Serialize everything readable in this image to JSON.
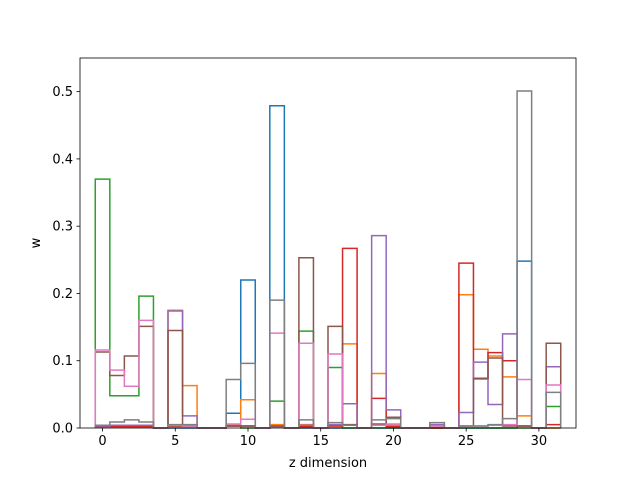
{
  "chart_data": {
    "type": "step",
    "xlabel": "z dimension",
    "ylabel": "w",
    "xlim": [
      -1.55,
      32.55
    ],
    "ylim": [
      0,
      0.55
    ],
    "xticks": [
      0,
      5,
      10,
      15,
      20,
      25,
      30
    ],
    "yticks": [
      0.0,
      0.1,
      0.2,
      0.3,
      0.4,
      0.5
    ],
    "xtick_labels": [
      "0",
      "5",
      "10",
      "15",
      "20",
      "25",
      "30"
    ],
    "ytick_labels": [
      "0.0",
      "0.1",
      "0.2",
      "0.3",
      "0.4",
      "0.5"
    ],
    "grid": false,
    "legend": "none",
    "series": [
      {
        "color": "#1f77b4",
        "values": [
          0.003,
          0.003,
          0.002,
          0.002,
          0,
          0,
          0,
          0,
          0,
          0.022,
          0.22,
          0,
          0.479,
          0,
          0,
          0,
          0,
          0,
          0,
          0,
          0,
          0,
          0,
          0,
          0,
          0,
          0,
          0,
          0,
          0.248,
          0,
          0
        ]
      },
      {
        "color": "#ff7f0e",
        "values": [
          0.002,
          0.002,
          0.002,
          0.002,
          0,
          0.175,
          0.063,
          0,
          0,
          0.004,
          0.042,
          0,
          0.005,
          0,
          0.005,
          0,
          0.003,
          0.125,
          0,
          0.081,
          0.004,
          0,
          0,
          0,
          0,
          0.198,
          0.117,
          0.107,
          0.076,
          0.018,
          0,
          0
        ]
      },
      {
        "color": "#2ca02c",
        "values": [
          0.37,
          0.048,
          0.048,
          0.196,
          0,
          0.003,
          0.003,
          0,
          0,
          0.003,
          0,
          0,
          0.04,
          0,
          0.144,
          0,
          0.09,
          0,
          0,
          0,
          0,
          0,
          0,
          0,
          0,
          0,
          0,
          0,
          0,
          0,
          0,
          0.032
        ]
      },
      {
        "color": "#d62728",
        "values": [
          0.002,
          0.002,
          0.002,
          0.002,
          0,
          0.003,
          0.003,
          0,
          0,
          0.003,
          0.003,
          0,
          0.002,
          0,
          0.002,
          0,
          0.003,
          0.267,
          0,
          0.044,
          0.002,
          0,
          0,
          0,
          0,
          0.245,
          0.073,
          0.112,
          0.1,
          0.003,
          0,
          0.005
        ]
      },
      {
        "color": "#9467bd",
        "values": [
          0.003,
          0.004,
          0.004,
          0.004,
          0,
          0.174,
          0.018,
          0,
          0,
          0.003,
          0.003,
          0,
          0.003,
          0,
          0.004,
          0,
          0.005,
          0.036,
          0,
          0.286,
          0.027,
          0,
          0,
          0.005,
          0,
          0.023,
          0.098,
          0.035,
          0.14,
          0.003,
          0,
          0.091
        ]
      },
      {
        "color": "#8c564b",
        "values": [
          0.113,
          0.078,
          0.107,
          0.151,
          0,
          0.145,
          0.004,
          0,
          0,
          0.003,
          0.003,
          0,
          0.003,
          0,
          0.253,
          0,
          0.151,
          0.005,
          0,
          0.006,
          0.016,
          0,
          0,
          0.003,
          0,
          0.003,
          0.074,
          0.104,
          0.003,
          0.003,
          0,
          0.126
        ]
      },
      {
        "color": "#e377c2",
        "values": [
          0.116,
          0.086,
          0.062,
          0.16,
          0,
          0.004,
          0.003,
          0,
          0,
          0.006,
          0.013,
          0,
          0.141,
          0,
          0.126,
          0,
          0.11,
          0.004,
          0,
          0.004,
          0.006,
          0,
          0,
          0.003,
          0,
          0.003,
          0.003,
          0.004,
          0.005,
          0.072,
          0,
          0.064
        ]
      },
      {
        "color": "#7f7f7f",
        "values": [
          0.004,
          0.009,
          0.012,
          0.009,
          0,
          0.005,
          0.005,
          0,
          0,
          0.072,
          0.096,
          0,
          0.19,
          0,
          0.012,
          0,
          0.008,
          0.004,
          0,
          0.012,
          0.014,
          0,
          0,
          0.008,
          0,
          0.003,
          0.003,
          0.005,
          0.014,
          0.501,
          0,
          0.053
        ]
      }
    ]
  }
}
